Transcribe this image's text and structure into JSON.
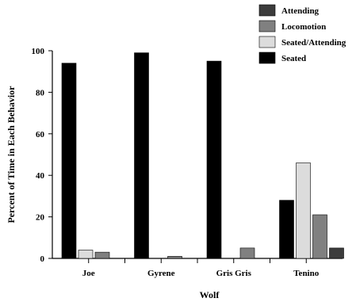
{
  "chart_data": {
    "type": "bar",
    "title": "",
    "xlabel": "Wolf",
    "ylabel": "Percent of Time in Each Behavior",
    "ylim": [
      0,
      100
    ],
    "yticks": [
      0,
      20,
      40,
      60,
      80,
      100
    ],
    "categories": [
      "Joe",
      "Gyrene",
      "Gris Gris",
      "Tenino"
    ],
    "series": [
      {
        "name": "Seated",
        "color": "#000000",
        "values": [
          94,
          99,
          95,
          28
        ]
      },
      {
        "name": "Seated/Attending",
        "color": "#dcdcdc",
        "values": [
          4,
          0,
          0,
          46
        ]
      },
      {
        "name": "Locomotion",
        "color": "#808080",
        "values": [
          3,
          1,
          5,
          21
        ]
      },
      {
        "name": "Attending",
        "color": "#3c3c3c",
        "values": [
          0,
          0,
          0,
          5
        ]
      }
    ],
    "legend": {
      "placement": "top-right",
      "order": [
        "Attending",
        "Locomotion",
        "Seated/Attending",
        "Seated"
      ]
    },
    "grid": false
  }
}
